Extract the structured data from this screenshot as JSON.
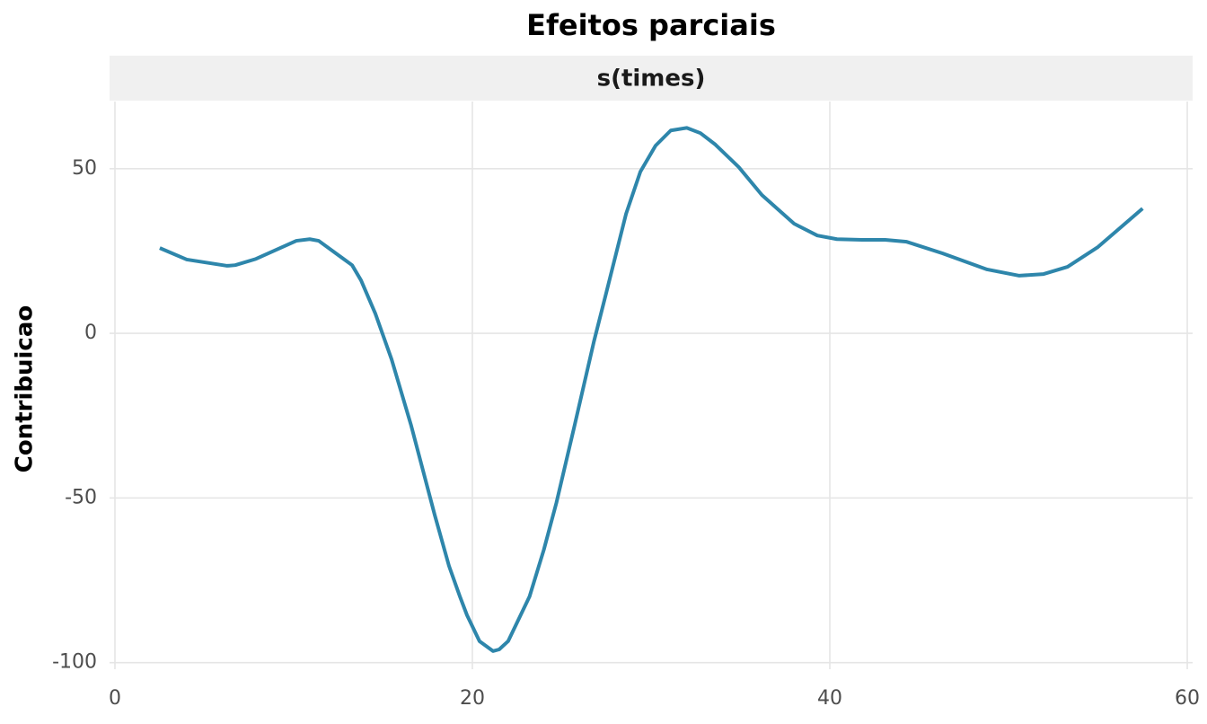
{
  "chart_data": {
    "type": "line",
    "title": "Efeitos parciais",
    "facet": "s(times)",
    "y_label": "Contribuicao",
    "color": "#2e86ab",
    "x": [
      2.51,
      4.02,
      6.28,
      6.73,
      7.89,
      10.15,
      10.9,
      11.4,
      13.27,
      13.77,
      14.57,
      15.48,
      16.58,
      17.89,
      18.69,
      19.3,
      19.7,
      20.4,
      21.16,
      21.5,
      22.0,
      23.2,
      24.0,
      24.7,
      25.7,
      26.8,
      27.5,
      28.6,
      29.4,
      30.25,
      31.1,
      32.0,
      32.76,
      33.6,
      34.9,
      36.2,
      38.0,
      39.3,
      40.4,
      41.8,
      43.1,
      44.3,
      46.3,
      48.8,
      50.6,
      51.96,
      53.3,
      55.0,
      57.5
    ],
    "values": [
      25.9,
      22.4,
      20.5,
      20.7,
      22.6,
      28.1,
      28.6,
      28.1,
      20.7,
      16.1,
      6.0,
      -7.9,
      -28.1,
      -55.1,
      -70.6,
      -79.9,
      -85.6,
      -93.5,
      -96.5,
      -96.0,
      -93.5,
      -79.9,
      -65.7,
      -51.5,
      -28.4,
      -2.5,
      12.5,
      36.3,
      49.1,
      57.0,
      61.6,
      62.4,
      60.8,
      57.3,
      50.5,
      42.0,
      33.3,
      29.7,
      28.6,
      28.4,
      28.4,
      27.8,
      24.3,
      19.4,
      17.5,
      18.0,
      20.2,
      26.2,
      37.9
    ],
    "xlim": [
      -0.3,
      60.3
    ],
    "ylim": [
      -102,
      70.4
    ],
    "xticks": [
      0,
      20,
      40,
      60
    ],
    "yticks": [
      -100,
      -50,
      0,
      50
    ],
    "grid": true
  }
}
